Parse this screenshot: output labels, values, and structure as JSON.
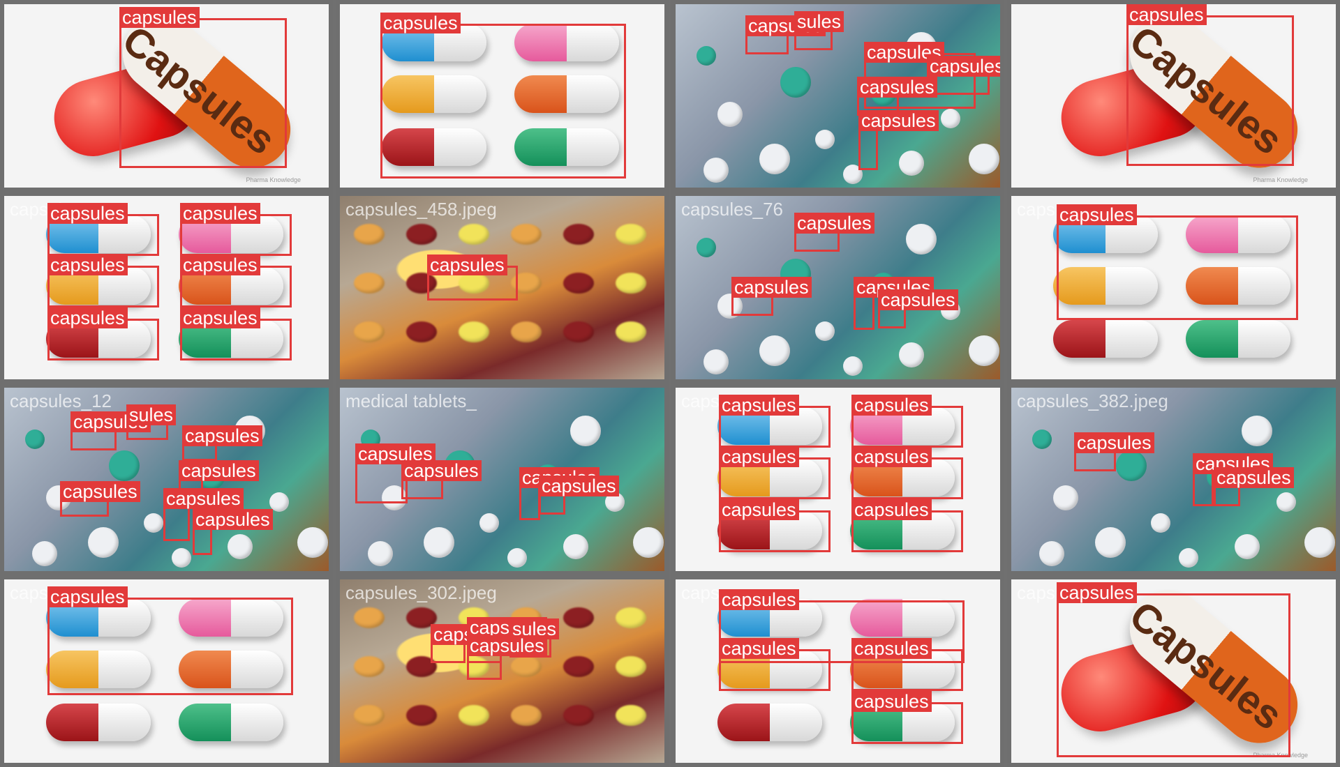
{
  "grid": {
    "tiles": [
      {
        "kind": "big",
        "caption": "",
        "labels": [
          "capsules"
        ]
      },
      {
        "kind": "six",
        "caption": "",
        "labels": [
          "capsules"
        ]
      },
      {
        "kind": "photo",
        "caption": "",
        "labels": [
          "capsules",
          "sules",
          "capsules",
          "capsules",
          "capsules",
          "capsules"
        ]
      },
      {
        "kind": "big",
        "caption": "",
        "labels": [
          "capsules"
        ]
      },
      {
        "kind": "six",
        "caption": "capsules_",
        "labels": [
          "capsules",
          "capsules",
          "capsules",
          "capsules",
          "capsules",
          "capsules"
        ]
      },
      {
        "kind": "blur",
        "caption": "capsules_458.jpeg",
        "labels": [
          "capsules"
        ]
      },
      {
        "kind": "photo",
        "caption": "capsules_76",
        "labels": [
          "capsules",
          "capsules",
          "capsules",
          "capsules"
        ]
      },
      {
        "kind": "six",
        "caption": "caps",
        "labels": [
          "capsules"
        ]
      },
      {
        "kind": "photo",
        "caption": "capsules_12",
        "labels": [
          "capsules",
          "sules",
          "capsules",
          "capsules",
          "capsules",
          "capsules",
          "capsules"
        ]
      },
      {
        "kind": "photo",
        "caption": "medical tablets_",
        "labels": [
          "capsules",
          "capsules",
          "capsules",
          "capsules"
        ]
      },
      {
        "kind": "six",
        "caption": "caps",
        "labels": [
          "capsules",
          "capsules",
          "capsules",
          "capsules",
          "capsules",
          "capsules"
        ]
      },
      {
        "kind": "photo",
        "caption": "capsules_382.jpeg",
        "labels": [
          "capsules",
          "capsules",
          "capsules"
        ]
      },
      {
        "kind": "six",
        "caption": "caps",
        "labels": [
          "capsules"
        ]
      },
      {
        "kind": "blur",
        "caption": "capsules_302.jpeg",
        "labels": [
          "capsules",
          "capsules",
          "sules",
          "capsules"
        ]
      },
      {
        "kind": "six",
        "caption": "caps",
        "labels": [
          "capsules",
          "capsules",
          "capsules",
          "capsules"
        ]
      },
      {
        "kind": "big",
        "caption": "caps",
        "labels": [
          "capsules"
        ]
      }
    ],
    "big_word": "Capsules",
    "copyright": "Pharma Knowledge"
  }
}
